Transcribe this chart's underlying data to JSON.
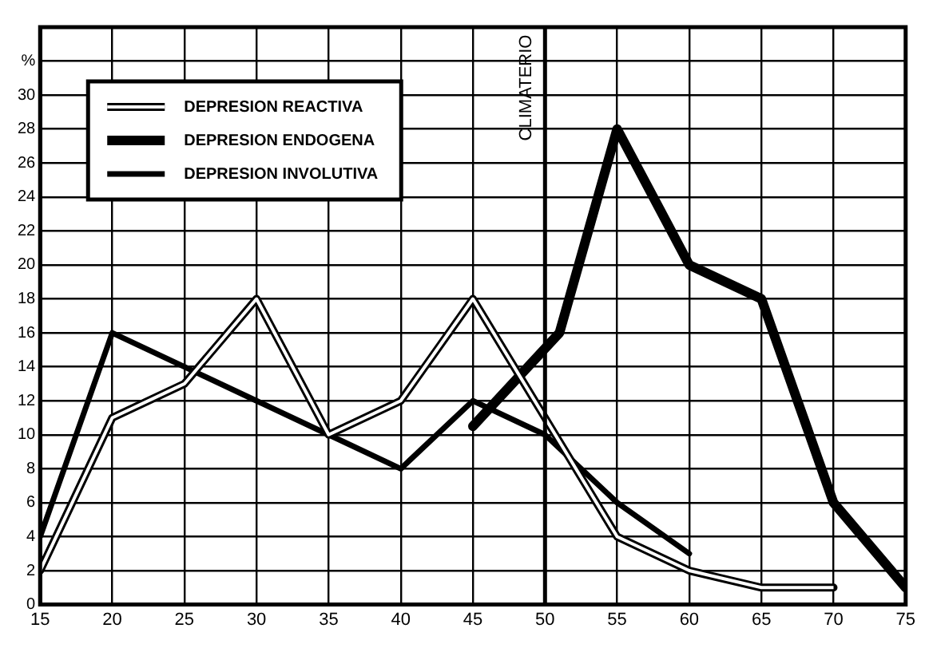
{
  "chart_data": {
    "type": "line",
    "xlim": [
      15,
      75
    ],
    "ylim": [
      0,
      34
    ],
    "xticks": [
      15,
      20,
      25,
      30,
      35,
      40,
      45,
      50,
      55,
      60,
      65,
      70,
      75
    ],
    "yticks": [
      0,
      2,
      4,
      6,
      8,
      10,
      12,
      14,
      16,
      18,
      20,
      22,
      24,
      26,
      28,
      30,
      {
        "value": 32,
        "label": "%"
      }
    ],
    "grid": true,
    "legend": "top left",
    "marker": "none",
    "series": [
      {
        "name": "DEPRESION REACTIVA",
        "color": "#000000",
        "x": [
          15,
          20,
          25,
          30,
          35,
          40,
          45,
          50,
          55,
          60,
          65,
          70
        ],
        "values": [
          2,
          11,
          13,
          18,
          10,
          12,
          18,
          11,
          4,
          2,
          1,
          1
        ]
      },
      {
        "name": "DEPRESION ENDOGENA",
        "color": "#000000",
        "x": [
          45,
          51,
          55,
          60,
          65,
          70,
          75
        ],
        "values": [
          10.5,
          16,
          28,
          20,
          18,
          6,
          1
        ]
      },
      {
        "name": "DEPRESION INVOLUTIVA",
        "color": "#000000",
        "x": [
          15,
          20,
          25,
          30,
          35,
          40,
          45,
          50,
          55,
          60
        ],
        "values": [
          4,
          16,
          14,
          12,
          10,
          8,
          12,
          10,
          6,
          3
        ]
      }
    ],
    "ref_lines": [
      {
        "axis": "x",
        "value": 50,
        "label": "CLIMATERIO"
      }
    ]
  }
}
